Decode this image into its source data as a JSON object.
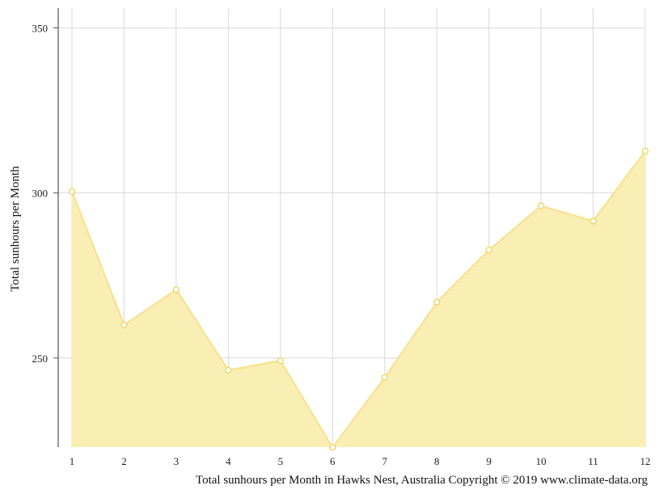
{
  "chart_data": {
    "type": "area",
    "x": [
      "1",
      "2",
      "3",
      "4",
      "5",
      "6",
      "7",
      "8",
      "9",
      "10",
      "11",
      "12"
    ],
    "series": [
      {
        "values": [
          300.5,
          260,
          270.7,
          246.3,
          249.2,
          222.9,
          244.1,
          266.9,
          282.7,
          296.1,
          291.5,
          312.7
        ]
      }
    ],
    "ylabel": "Total sunhours per Month",
    "caption": "Total sunhours per Month in Hawks Nest, Australia Copyright © 2019 www.climate-data.org",
    "ylim": [
      223,
      356
    ],
    "yticks": [
      "250",
      "300",
      "350"
    ],
    "grid": true,
    "colors": {
      "fill": "#f9eeb0",
      "line": "#f7e08a",
      "marker_stroke": "#eed25a",
      "grid": "#d9d9d9",
      "axis": "#555555"
    }
  }
}
